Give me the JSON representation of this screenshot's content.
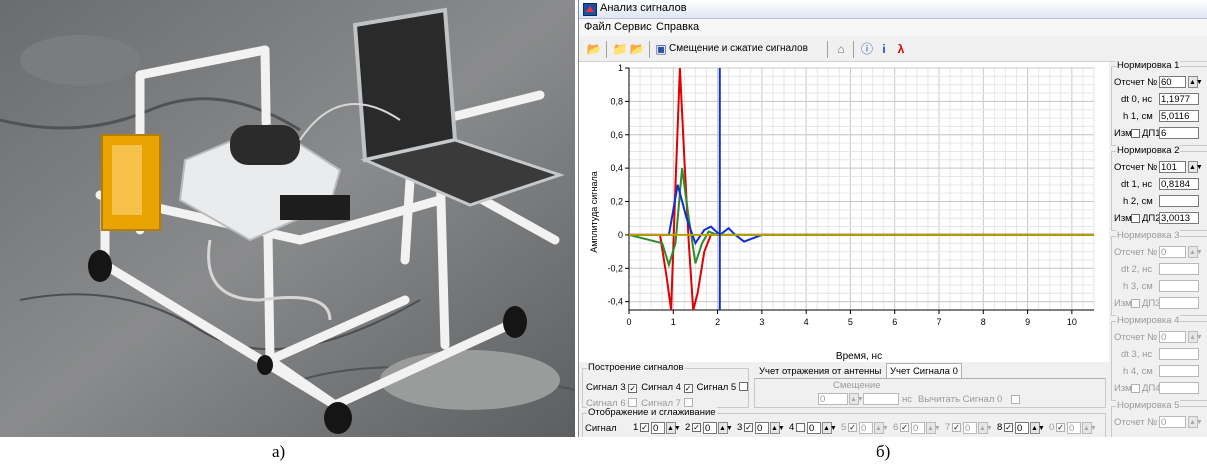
{
  "captions": {
    "left": "а)",
    "right": "б)"
  },
  "window": {
    "title": "Анализ сигналов"
  },
  "menu": [
    "Файл",
    "Сервис",
    "Справка"
  ],
  "toolbar": {
    "shift_label": "Смещение и сжатие сигналов",
    "icons": [
      "open-icon",
      "folder-icon",
      "folder-export-icon",
      "save-icon",
      "home-icon",
      "help-icon",
      "info-icon",
      "signal-icon"
    ]
  },
  "chart_data": {
    "type": "line",
    "xlabel": "Время, нс",
    "ylabel": "Амплитуда сигнала",
    "xlim": [
      0,
      10.5
    ],
    "ylim": [
      -0.45,
      1.0
    ],
    "x_ticks": [
      0,
      1,
      2,
      3,
      4,
      5,
      6,
      7,
      8,
      9,
      10
    ],
    "y_ticks": [
      1,
      0.8,
      0.6,
      0.4,
      0.2,
      0,
      -0.2,
      -0.4
    ],
    "y_tick_labels": [
      "1",
      "0,8",
      "0,6",
      "0,4",
      "0,2",
      "0",
      "-0,2",
      "-0,4"
    ],
    "grid": true,
    "series": [
      {
        "color": "#e00000",
        "x": [
          0,
          0.7,
          0.85,
          0.95,
          1.05,
          1.15,
          1.25,
          1.35,
          1.45,
          1.55,
          1.7,
          1.85,
          2.0,
          2.2,
          10.5
        ],
        "y": [
          0,
          0,
          -0.25,
          -0.45,
          0.3,
          1.0,
          0.45,
          -0.05,
          -0.45,
          -0.35,
          -0.1,
          0,
          0,
          0,
          0
        ]
      },
      {
        "color": "#2e8b2e",
        "x": [
          0,
          0.75,
          0.9,
          1.05,
          1.2,
          1.35,
          1.5,
          1.65,
          1.8,
          2.0,
          10.5
        ],
        "y": [
          0,
          -0.05,
          -0.18,
          -0.05,
          0.4,
          0.1,
          -0.17,
          -0.05,
          0.02,
          0,
          0
        ]
      },
      {
        "color": "#1030d0",
        "x": [
          0,
          0.9,
          1.1,
          1.3,
          1.5,
          1.7,
          1.85,
          2.05,
          2.25,
          2.4,
          2.6,
          2.8,
          3.0,
          3.2,
          10.5
        ],
        "y": [
          0,
          0,
          0.3,
          0.1,
          -0.05,
          0.03,
          0.05,
          0.0,
          0.04,
          0.0,
          -0.04,
          -0.02,
          0,
          0,
          0
        ]
      },
      {
        "color": "#b8a000",
        "x": [
          0,
          10.5
        ],
        "y": [
          0,
          0
        ]
      }
    ],
    "markers": [
      {
        "color": "#1030d0",
        "x": 2.05
      }
    ]
  },
  "norm": [
    {
      "title": "Нормировка 1",
      "idx_label": "Отсчет №",
      "idx": "60",
      "dt_label": "dt 0, нс",
      "dt": "1,1977",
      "h_label": "h 1, см",
      "h": "5,0116",
      "izm": "Изм",
      "dp_label": "ДП1",
      "dp": "6",
      "enabled": true
    },
    {
      "title": "Нормировка 2",
      "idx_label": "Отсчет №",
      "idx": "101",
      "dt_label": "dt 1, нс",
      "dt": "0,8184",
      "h_label": "h 2, см",
      "h": "",
      "izm": "Изм",
      "dp_label": "ДП2",
      "dp": "3,0013",
      "enabled": true
    },
    {
      "title": "Нормировка 3",
      "idx_label": "Отсчет №",
      "idx": "0",
      "dt_label": "dt 2, нс",
      "dt": "",
      "h_label": "h 3, см",
      "h": "",
      "izm": "Изм",
      "dp_label": "ДП3",
      "dp": "",
      "enabled": false
    },
    {
      "title": "Нормировка 4",
      "idx_label": "Отсчет №",
      "idx": "0",
      "dt_label": "dt 3, нс",
      "dt": "",
      "h_label": "h 4, см",
      "h": "",
      "izm": "Изм",
      "dp_label": "ДП4",
      "dp": "",
      "enabled": false
    },
    {
      "title": "Нормировка 5",
      "idx_label": "Отсчет №",
      "idx": "0",
      "enabled": false
    }
  ],
  "build": {
    "title": "Построение сигналов",
    "items": [
      {
        "label": "Сигнал 3",
        "checked": true,
        "enabled": true
      },
      {
        "label": "Сигнал 4",
        "checked": true,
        "enabled": true
      },
      {
        "label": "Сигнал 5",
        "checked": false,
        "enabled": true
      },
      {
        "label": "Сигнал 6",
        "checked": false,
        "enabled": false
      },
      {
        "label": "Сигнал 7",
        "checked": false,
        "enabled": false
      }
    ]
  },
  "tabs": {
    "t1": "Учет отражения от антенны",
    "t2": "Учет Сигнала 0",
    "shift_label": "Смещение",
    "shift_value": "0",
    "unit": "нс",
    "subtract_label": "Вычитать Сигнал 0"
  },
  "display": {
    "title": "Отображение и сглаживание",
    "signal_label": "Сигнал",
    "cols": [
      {
        "n": "1",
        "v": "0",
        "checked": true,
        "enabled": true
      },
      {
        "n": "2",
        "v": "0",
        "checked": true,
        "enabled": true
      },
      {
        "n": "3",
        "v": "0",
        "checked": true,
        "enabled": true
      },
      {
        "n": "4",
        "v": "0",
        "checked": false,
        "enabled": true
      },
      {
        "n": "5",
        "v": "0",
        "checked": true,
        "enabled": false
      },
      {
        "n": "6",
        "v": "0",
        "checked": true,
        "enabled": false
      },
      {
        "n": "7",
        "v": "0",
        "checked": true,
        "enabled": false
      },
      {
        "n": "8",
        "v": "0",
        "checked": true,
        "enabled": true
      },
      {
        "n": "0",
        "v": "0",
        "checked": true,
        "enabled": false
      }
    ]
  }
}
